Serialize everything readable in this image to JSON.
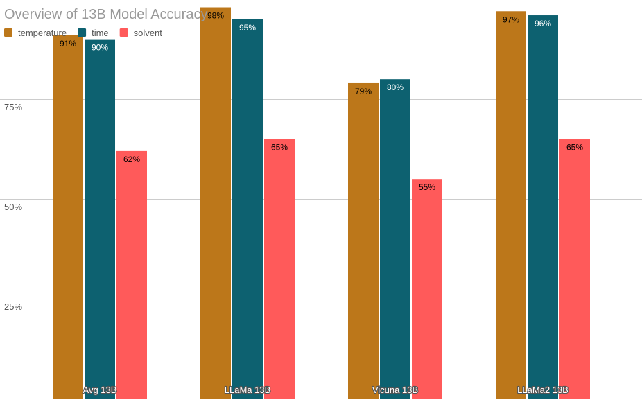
{
  "chart_data": {
    "type": "bar",
    "title": "Overview of 13B Model Accuracy",
    "categories": [
      "Avg 13B",
      "LLaMa 13B",
      "Vicuna 13B",
      "LLaMa2 13B"
    ],
    "series": [
      {
        "name": "temperature",
        "values": [
          91,
          98,
          79,
          97
        ],
        "labels": [
          "91%",
          "98%",
          "79%",
          "97%"
        ],
        "color": "#BC771A"
      },
      {
        "name": "time",
        "values": [
          90,
          95,
          80,
          96
        ],
        "labels": [
          "90%",
          "95%",
          "80%",
          "96%"
        ],
        "color": "#0D6170"
      },
      {
        "name": "solvent",
        "values": [
          62,
          65,
          55,
          65
        ],
        "labels": [
          "62%",
          "65%",
          "55%",
          "65%"
        ],
        "color": "#FF5A5A"
      }
    ],
    "yticks": [
      {
        "value": 25,
        "label": "25%"
      },
      {
        "value": 50,
        "label": "50%"
      },
      {
        "value": 75,
        "label": "75%"
      }
    ],
    "ylim": [
      0,
      100
    ],
    "grid": true,
    "legend": "top-left",
    "xlabel": "",
    "ylabel": "",
    "colors": {
      "grid": "#CCCCCC",
      "title": "#999999",
      "axis_text": "#555555",
      "legend_text": "#555555",
      "label_dark": "#000000",
      "label_light": "#FFFFFF"
    }
  }
}
